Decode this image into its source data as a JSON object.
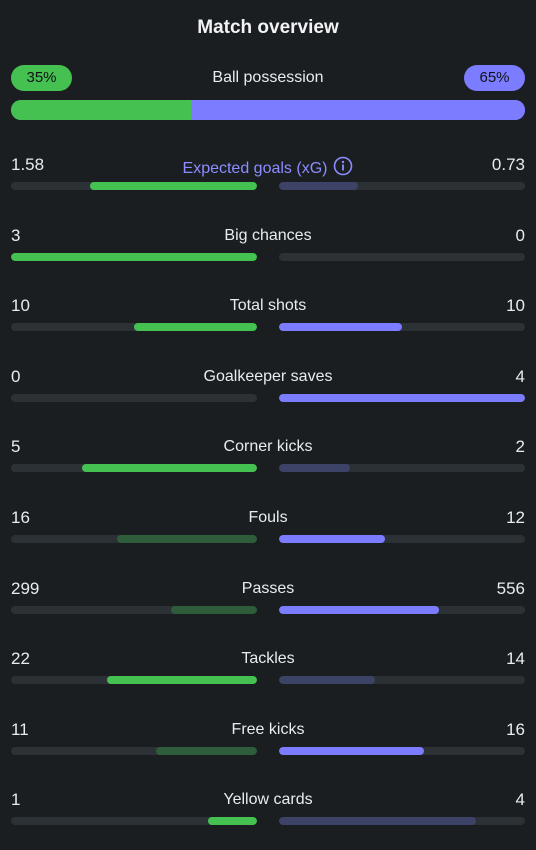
{
  "header": {
    "title": "Match overview"
  },
  "possession": {
    "label": "Ball possession",
    "home_text": "35%",
    "away_text": "65%",
    "home_fraction": 0.35
  },
  "colors": {
    "home_strong": "#45c151",
    "home_weak": "#2f5c3a",
    "away_strong": "#7b7cff",
    "away_weak": "#3d4366"
  },
  "stats": [
    {
      "label": "Expected goals (xG)",
      "home": "1.58",
      "away": "0.73",
      "home_fraction": 0.68,
      "away_fraction": 0.32,
      "leader": "home",
      "info": true
    },
    {
      "label": "Big chances",
      "home": "3",
      "away": "0",
      "home_fraction": 1.0,
      "away_fraction": 0.0,
      "leader": "home"
    },
    {
      "label": "Total shots",
      "home": "10",
      "away": "10",
      "home_fraction": 0.5,
      "away_fraction": 0.5,
      "leader": "both"
    },
    {
      "label": "Goalkeeper saves",
      "home": "0",
      "away": "4",
      "home_fraction": 0.0,
      "away_fraction": 1.0,
      "leader": "away"
    },
    {
      "label": "Corner kicks",
      "home": "5",
      "away": "2",
      "home_fraction": 0.71,
      "away_fraction": 0.29,
      "leader": "home"
    },
    {
      "label": "Fouls",
      "home": "16",
      "away": "12",
      "home_fraction": 0.57,
      "away_fraction": 0.43,
      "leader": "away"
    },
    {
      "label": "Passes",
      "home": "299",
      "away": "556",
      "home_fraction": 0.35,
      "away_fraction": 0.65,
      "leader": "away"
    },
    {
      "label": "Tackles",
      "home": "22",
      "away": "14",
      "home_fraction": 0.61,
      "away_fraction": 0.39,
      "leader": "home"
    },
    {
      "label": "Free kicks",
      "home": "11",
      "away": "16",
      "home_fraction": 0.41,
      "away_fraction": 0.59,
      "leader": "away"
    },
    {
      "label": "Yellow cards",
      "home": "1",
      "away": "4",
      "home_fraction": 0.2,
      "away_fraction": 0.8,
      "leader": "home"
    }
  ]
}
